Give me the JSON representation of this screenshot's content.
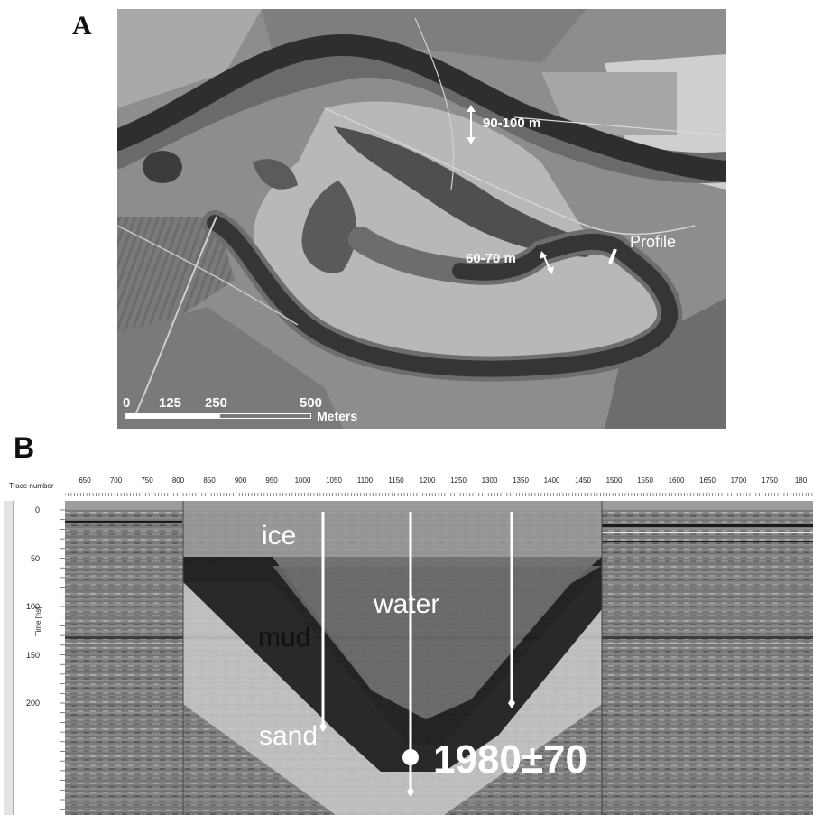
{
  "panel_a": {
    "letter": "A",
    "width_label_main": "90-100 m",
    "width_label_bend": "60-70 m",
    "profile_label": "Profile",
    "scale_bar": {
      "ticks": [
        "0",
        "125",
        "250",
        "500"
      ],
      "unit": "Meters"
    }
  },
  "panel_b": {
    "letter": "B",
    "x_axis_title": "Trace number",
    "x_ticks": [
      "650",
      "700",
      "750",
      "800",
      "850",
      "900",
      "950",
      "1000",
      "1050",
      "1100",
      "1150",
      "1200",
      "1250",
      "1300",
      "1350",
      "1400",
      "1450",
      "1500",
      "1550",
      "1600",
      "1650",
      "1700",
      "1750",
      "180"
    ],
    "y_axis_title": "Time [ns]",
    "y_ticks": [
      "0",
      "50",
      "100",
      "150",
      "200"
    ],
    "layers": {
      "ice": "ice",
      "water": "water",
      "mud": "mud",
      "sand": "sand"
    },
    "date": "1980±70"
  }
}
